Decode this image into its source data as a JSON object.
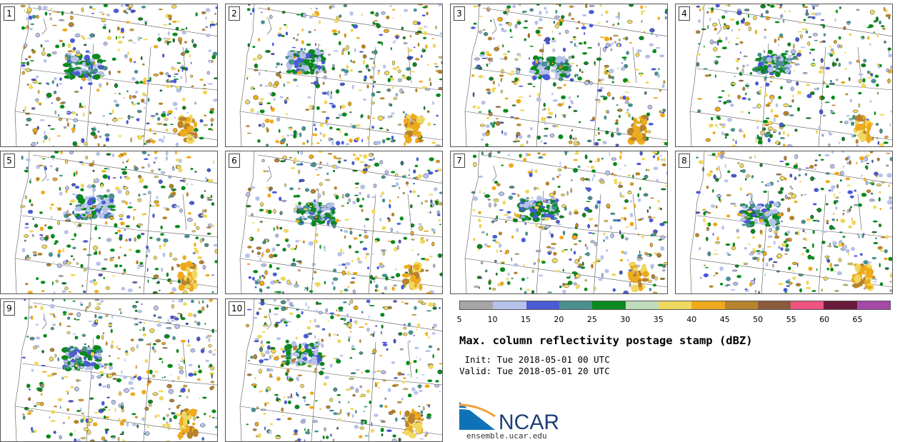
{
  "panels": [
    {
      "label": "1"
    },
    {
      "label": "2"
    },
    {
      "label": "3"
    },
    {
      "label": "4"
    },
    {
      "label": "5"
    },
    {
      "label": "6"
    },
    {
      "label": "7"
    },
    {
      "label": "8"
    },
    {
      "label": "9"
    },
    {
      "label": "10"
    }
  ],
  "colorbar": {
    "unit_title": "Max. column reflectivity postage stamp (dBZ)",
    "colors": [
      "#a6a6a6",
      "#b7c2ea",
      "#4a5bd4",
      "#4a9090",
      "#0a8a1e",
      "#bedcbd",
      "#efd860",
      "#eeaa1c",
      "#b7832e",
      "#8c5a3c",
      "#ef5480",
      "#6a1a3a",
      "#a549a8"
    ],
    "ticks": [
      "5",
      "10",
      "15",
      "20",
      "25",
      "30",
      "35",
      "40",
      "45",
      "50",
      "55",
      "60",
      "65"
    ]
  },
  "init_line": " Init: Tue 2018-05-01 00 UTC",
  "valid_line": "Valid: Tue 2018-05-01 20 UTC",
  "logo": {
    "text": "NCAR",
    "url": "ensemble.ucar.edu"
  }
}
